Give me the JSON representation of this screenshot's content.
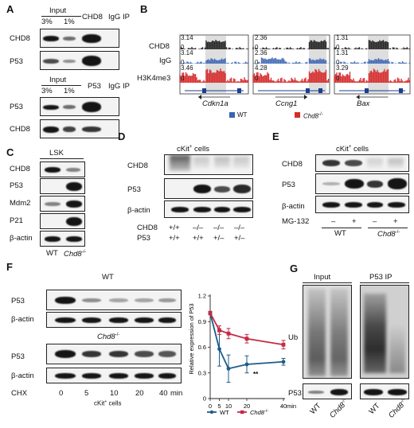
{
  "panels": {
    "A": {
      "label": "A",
      "top": {
        "header": "Input",
        "lanes": [
          "3%",
          "1%",
          "CHD8",
          "IgG"
        ],
        "ip": "IP",
        "rows": [
          "CHD8",
          "P53"
        ]
      },
      "bottom": {
        "header": "Input",
        "lanes": [
          "3%",
          "1%",
          "P53",
          "IgG"
        ],
        "ip": "IP",
        "rows": [
          "P53",
          "CHD8"
        ]
      }
    },
    "B": {
      "label": "B",
      "tracks": [
        "CHD8",
        "IgG",
        "H3K4me3"
      ],
      "scale_values": [
        [
          "3.14",
          "3.14",
          "3.46"
        ],
        [
          "2.36",
          "2.36",
          "4.28"
        ],
        [
          "1.31",
          "1.31",
          "3.29"
        ]
      ],
      "zero": "0",
      "genes": [
        "Cdkn1a",
        "Ccng1",
        "Bax"
      ],
      "legend": {
        "wt": "WT",
        "ko": "Chd8",
        "ko_sup": "-/-"
      },
      "colors": {
        "chd8": "#1a1a1a",
        "igg": "#3a64b4",
        "h3k4me3": "#d62c2c",
        "wt": "#3a64b4",
        "ko": "#d62c2c",
        "highlight": "#dedede"
      }
    },
    "C": {
      "label": "C",
      "header": "LSK",
      "rows": [
        "CHD8",
        "P53",
        "Mdm2",
        "P21",
        "β-actin"
      ],
      "lanes": [
        "WT",
        "Chd8"
      ],
      "ko_sup": "-/-"
    },
    "D": {
      "label": "D",
      "header": "cKit",
      "header_sup": "+",
      "header_tail": " cells",
      "rows": [
        "CHD8",
        "P53",
        "β-actin"
      ],
      "geno_labels": [
        "CHD8",
        "P53"
      ],
      "geno_chd8": [
        "+/+",
        "–/–",
        "–/–",
        "–/–"
      ],
      "geno_p53": [
        "+/+",
        "+/+",
        "+/–",
        "+/–"
      ]
    },
    "E": {
      "label": "E",
      "header": "cKit",
      "header_sup": "+",
      "header_tail": " cells",
      "rows": [
        "CHD8",
        "P53",
        "β-actin"
      ],
      "treat_label": "MG-132",
      "treat": [
        "–",
        "+",
        "–",
        "+"
      ],
      "groups": [
        "WT",
        "Chd8"
      ],
      "ko_sup": "-/-"
    },
    "F": {
      "label": "F",
      "wt_title": "WT",
      "ko_title": "Chd8",
      "ko_sup": "-/-",
      "rows": [
        "P53",
        "β-actin"
      ],
      "chx_label": "CHX",
      "times": [
        "0",
        "5",
        "10",
        "20",
        "40"
      ],
      "unit": "min",
      "cells": "cKit",
      "cells_sup": "+",
      "cells_tail": " cells",
      "legend": {
        "wt": "WT",
        "ko": "Chd8",
        "ko_sup": "-/-"
      },
      "significance": "**"
    },
    "G": {
      "label": "G",
      "input": "Input",
      "ip": "P53 IP",
      "rows": [
        "Ub",
        "P53"
      ],
      "lanes": [
        "WT",
        "Chd8"
      ],
      "ko_sup": "-/-"
    }
  },
  "chart_data": {
    "type": "line",
    "x": [
      0,
      5,
      10,
      20,
      40
    ],
    "xticks": [
      "0",
      "5",
      "10",
      "20",
      "40"
    ],
    "xunit": "min",
    "ylabel": "Relative expression of P53",
    "yticks": [
      "0",
      "0.3",
      "0.6",
      "0.9",
      "1.2"
    ],
    "ylim": [
      0,
      1.2
    ],
    "series": [
      {
        "name": "WT",
        "color": "#1e5c8a",
        "values": [
          1.0,
          0.58,
          0.35,
          0.4,
          0.43
        ],
        "errors": [
          0.02,
          0.2,
          0.16,
          0.1,
          0.04
        ]
      },
      {
        "name": "Chd8-/-",
        "color": "#c62a45",
        "values": [
          1.0,
          0.8,
          0.76,
          0.7,
          0.63
        ],
        "errors": [
          0.02,
          0.05,
          0.06,
          0.05,
          0.05
        ]
      }
    ],
    "annotation": {
      "text": "**",
      "x": 20
    }
  }
}
